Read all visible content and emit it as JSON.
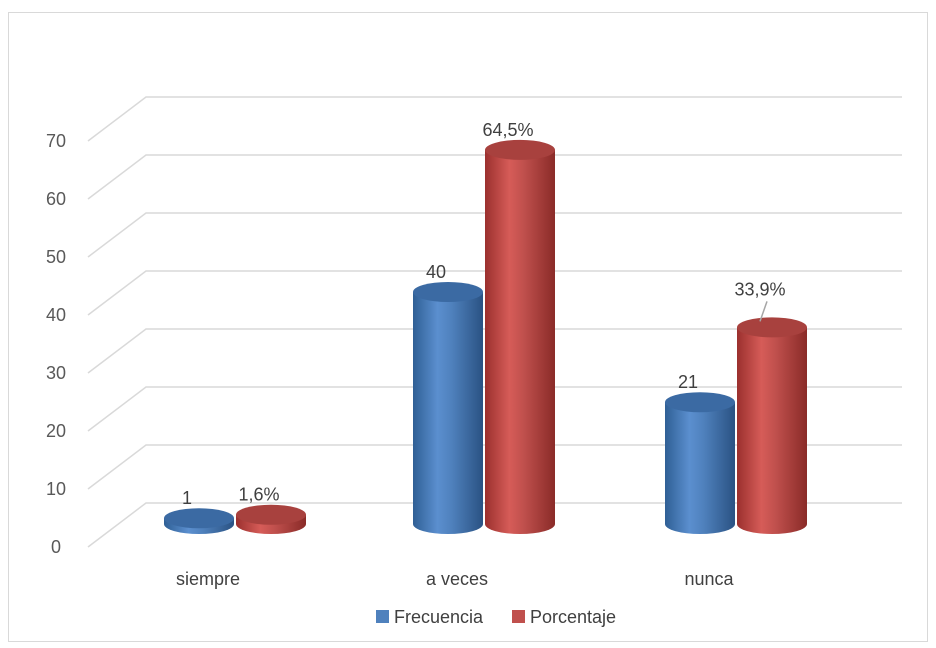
{
  "chart_data": {
    "type": "bar",
    "style": "3d-cylinder",
    "categories": [
      "siempre",
      "a veces",
      "nunca"
    ],
    "series": [
      {
        "name": "Frecuencia",
        "values": [
          1,
          40,
          21
        ],
        "labels": [
          "1",
          "40",
          "21"
        ],
        "color": "#4f81bd"
      },
      {
        "name": "Porcentaje",
        "values": [
          1.6,
          64.5,
          33.9
        ],
        "labels": [
          "1,6%",
          "64,5%",
          "33,9%"
        ],
        "color": "#c0504d"
      }
    ],
    "title": "",
    "xlabel": "",
    "ylabel": "",
    "ylim": [
      0,
      70
    ],
    "yticks": [
      0,
      10,
      20,
      30,
      40,
      50,
      60,
      70
    ],
    "grid": true,
    "legend_position": "bottom"
  }
}
